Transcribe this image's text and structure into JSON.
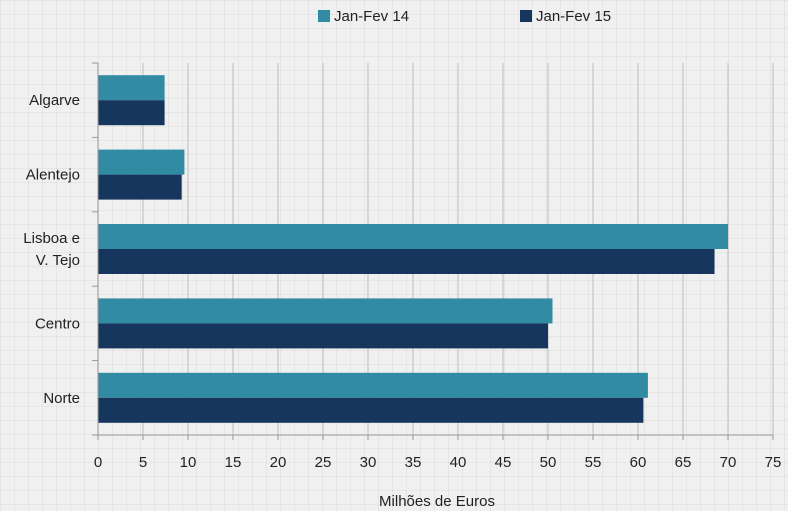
{
  "chart_data": {
    "type": "bar",
    "orientation": "horizontal",
    "categories": [
      "Algarve",
      "Alentejo",
      "Lisboa e\nV. Tejo",
      "Centro",
      "Norte"
    ],
    "series": [
      {
        "name": "Jan-Fev 14",
        "color": "#318ba3",
        "values": [
          7.4,
          9.6,
          70.0,
          50.5,
          61.1
        ]
      },
      {
        "name": "Jan-Fev 15",
        "color": "#17365d",
        "values": [
          7.4,
          9.3,
          68.5,
          50.0,
          60.6
        ]
      }
    ],
    "xlabel": "Milhões de Euros",
    "ylabel": "",
    "xlim": [
      0,
      75
    ],
    "xticks": [
      0,
      5,
      10,
      15,
      20,
      25,
      30,
      35,
      40,
      45,
      50,
      55,
      60,
      65,
      70,
      75
    ],
    "grid": "vertical",
    "legend": "top"
  }
}
